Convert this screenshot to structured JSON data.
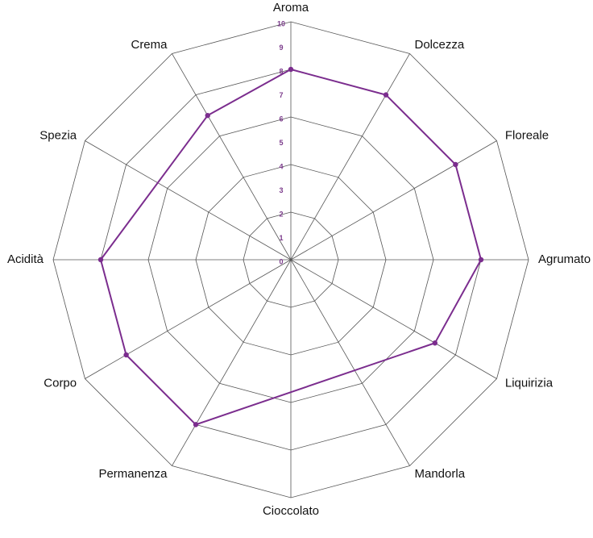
{
  "chart_data": {
    "type": "radar",
    "categories": [
      "Aroma",
      "Dolcezza",
      "Floreale",
      "Agrumato",
      "Liquirizia",
      "Mandorla",
      "Cioccolato",
      "Permanenza",
      "Corpo",
      "Acidità",
      "Spezia",
      "Crema"
    ],
    "series": [
      {
        "color": "#7b2d8e",
        "values": [
          8,
          8,
          8,
          8,
          7,
          null,
          null,
          8,
          8,
          8,
          null,
          7
        ]
      }
    ],
    "rlim": [
      0,
      10
    ],
    "rticks": [
      0,
      1,
      2,
      3,
      4,
      5,
      6,
      7,
      8,
      9,
      10
    ],
    "grid_rings": [
      2,
      4,
      6,
      8,
      10
    ],
    "span_gaps": true
  }
}
